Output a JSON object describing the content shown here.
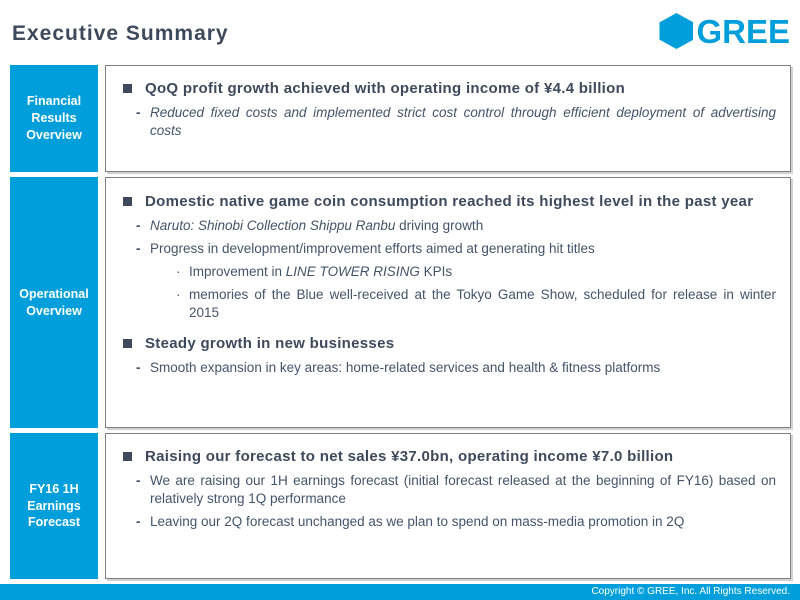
{
  "header": {
    "title": "Executive Summary",
    "logo_text": "GREE"
  },
  "colors": {
    "brand_cyan": "#009fdb",
    "heading_text": "#3e4a5c",
    "body_text": "#44546a",
    "box_border": "#7f7f7f"
  },
  "sections": [
    {
      "label": "Financial\nResults\nOverview",
      "items": [
        {
          "type": "heading",
          "runs": [
            {
              "text": "QoQ profit growth achieved with operating income of ¥4.4 billion"
            }
          ]
        },
        {
          "type": "dash",
          "runs": [
            {
              "text": "Reduced fixed costs and implemented strict cost control through efficient deployment of advertising costs",
              "italic": true
            }
          ]
        }
      ]
    },
    {
      "label": "Operational\nOverview",
      "items": [
        {
          "type": "heading",
          "runs": [
            {
              "text": "Domestic native game coin consumption reached its highest level in the past year"
            }
          ]
        },
        {
          "type": "dash",
          "runs": [
            {
              "text": "Naruto: Shinobi Collection Shippu Ranbu",
              "italic": true
            },
            {
              "text": " driving growth"
            }
          ]
        },
        {
          "type": "dash",
          "runs": [
            {
              "text": "Progress in development/improvement efforts aimed at generating hit titles"
            }
          ]
        },
        {
          "type": "dot",
          "runs": [
            {
              "text": "Improvement in "
            },
            {
              "text": "LINE TOWER RISING",
              "italic": true
            },
            {
              "text": " KPIs"
            }
          ]
        },
        {
          "type": "dot",
          "runs": [
            {
              "text": "memories of the Blue well-received at the Tokyo Game Show, scheduled for release in winter 2015"
            }
          ]
        },
        {
          "type": "heading",
          "runs": [
            {
              "text": "Steady growth in new businesses"
            }
          ]
        },
        {
          "type": "dash",
          "runs": [
            {
              "text": "Smooth expansion in key areas: home-related services and health & fitness platforms"
            }
          ]
        }
      ]
    },
    {
      "label": "FY16 1H\nEarnings\nForecast",
      "items": [
        {
          "type": "heading",
          "runs": [
            {
              "text": "Raising our forecast to net sales ¥37.0bn, operating income ¥7.0 billion"
            }
          ]
        },
        {
          "type": "dash",
          "runs": [
            {
              "text": "We are raising our 1H earnings forecast (initial forecast released at the beginning of FY16) based on relatively strong 1Q performance"
            }
          ]
        },
        {
          "type": "dash",
          "runs": [
            {
              "text": "Leaving our 2Q forecast unchanged as we plan to spend on mass-media promotion in 2Q"
            }
          ]
        }
      ]
    }
  ],
  "footer": {
    "copyright": "Copyright © GREE, Inc. All Rights Reserved."
  }
}
